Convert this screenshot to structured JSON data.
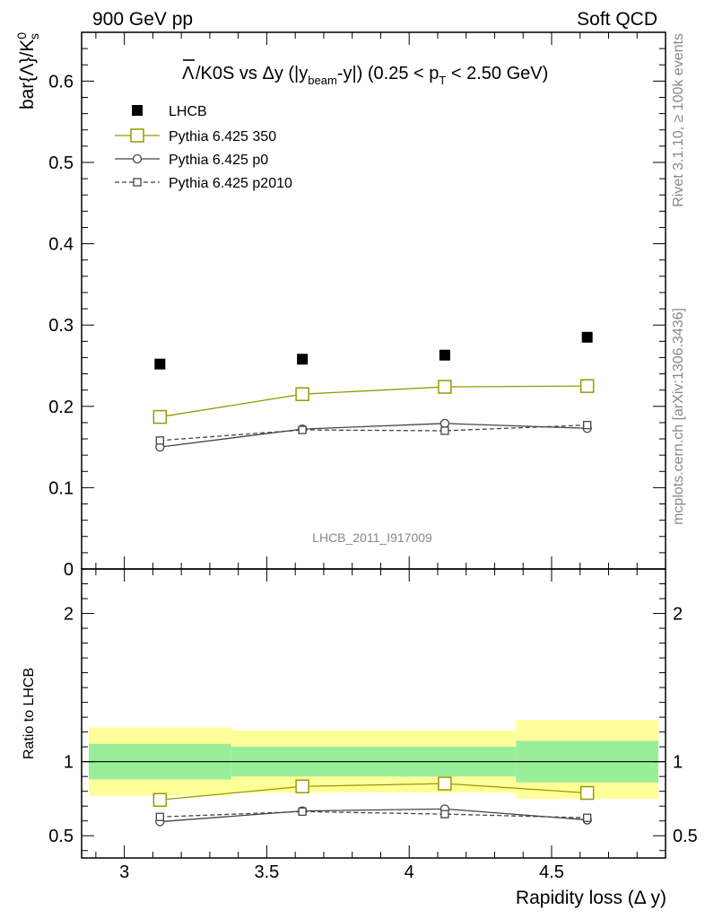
{
  "header": {
    "left_label": "900 GeV pp",
    "right_label": "Soft QCD"
  },
  "side_labels": {
    "rivet": "Rivet 3.1.10, ≥ 100k events",
    "mcplots": "mcplots.cern.ch [arXiv:1306.3436]"
  },
  "watermark": "LHCB_2011_I917009",
  "colors": {
    "data": "#000000",
    "pythia_350": "#999900",
    "pythia_p0": "#444444",
    "pythia_p2010": "#444444",
    "band_inner": "#99ee99",
    "band_outer": "#ffff99"
  },
  "chart_data": [
    {
      "type": "scatter",
      "panel": "main",
      "title": "bar{Λ}/K0S vs Δy (|y_beam-y|) (0.25 < p_T < 2.50 GeV)",
      "title_parts": {
        "lead": "/K0S vs Δy (|y",
        "beam": "beam",
        "mid": "-y|) (0.25 < p",
        "T": "T",
        "tail": " < 2.50 GeV)"
      },
      "ylabel": "bar{Λ}/K_s^0",
      "ylabel_parts": {
        "lead": "bar{Λ}/K",
        "sup": "0",
        "sub": "s"
      },
      "xlim": [
        2.85,
        4.9
      ],
      "ylim": [
        0,
        0.66
      ],
      "x_ticks": [
        3,
        3.5,
        4,
        4.5
      ],
      "y_ticks": [
        0,
        0.1,
        0.2,
        0.3,
        0.4,
        0.5,
        0.6
      ],
      "y_tick_labels": [
        "0",
        "0.1",
        "0.2",
        "0.3",
        "0.4",
        "0.5",
        "0.6"
      ],
      "x": [
        3.125,
        3.625,
        4.125,
        4.625
      ],
      "series": [
        {
          "name": "LHCB",
          "marker": "filled-square",
          "values": [
            0.252,
            0.258,
            0.263,
            0.285
          ]
        },
        {
          "name": "Pythia 6.425 350",
          "marker": "open-square",
          "line": "solid",
          "values": [
            0.187,
            0.215,
            0.224,
            0.225
          ]
        },
        {
          "name": "Pythia 6.425 p0",
          "marker": "open-circle",
          "line": "solid",
          "values": [
            0.15,
            0.172,
            0.179,
            0.173
          ]
        },
        {
          "name": "Pythia 6.425 p2010",
          "marker": "open-square-small",
          "line": "dashed",
          "values": [
            0.158,
            0.171,
            0.17,
            0.177
          ]
        }
      ],
      "legend_position": "top-left"
    },
    {
      "type": "line",
      "panel": "ratio",
      "ylabel": "Ratio to LHCB",
      "xlabel": "Rapidity loss (Δ y)",
      "xlim": [
        2.85,
        4.9
      ],
      "ylim": [
        0.35,
        2.3
      ],
      "x_ticks": [
        3,
        3.5,
        4,
        4.5
      ],
      "x_tick_labels": [
        "3",
        "3.5",
        "4",
        "4.5"
      ],
      "y_ticks": [
        0.5,
        1,
        2
      ],
      "y_tick_labels": [
        "0.5",
        "1",
        "2"
      ],
      "bins": [
        [
          2.875,
          3.375
        ],
        [
          3.375,
          3.875
        ],
        [
          3.875,
          4.375
        ],
        [
          4.375,
          4.875
        ]
      ],
      "band_inner": [
        [
          0.88,
          1.12
        ],
        [
          0.9,
          1.1
        ],
        [
          0.9,
          1.1
        ],
        [
          0.86,
          1.14
        ]
      ],
      "band_outer": [
        [
          0.77,
          1.23
        ],
        [
          0.79,
          1.21
        ],
        [
          0.79,
          1.21
        ],
        [
          0.75,
          1.28
        ]
      ],
      "x": [
        3.125,
        3.625,
        4.125,
        4.625
      ],
      "series": [
        {
          "name": "Pythia 6.425 350",
          "values": [
            0.742,
            0.833,
            0.852,
            0.789
          ]
        },
        {
          "name": "Pythia 6.425 p0",
          "values": [
            0.595,
            0.667,
            0.681,
            0.607
          ]
        },
        {
          "name": "Pythia 6.425 p2010",
          "values": [
            0.627,
            0.663,
            0.646,
            0.621
          ]
        }
      ]
    }
  ]
}
